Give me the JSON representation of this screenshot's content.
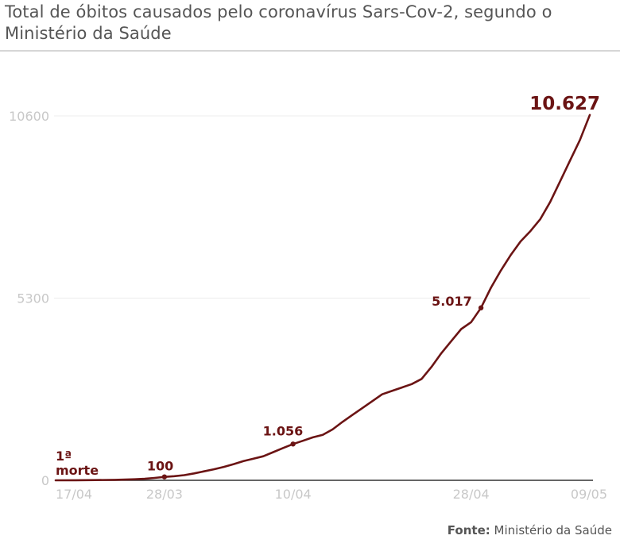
{
  "title": "Total de óbitos causados pelo coronavírus Sars-Cov-2, segundo o Ministério da Saúde",
  "source": {
    "label": "Fonte:",
    "text": "Ministério da Saúde"
  },
  "colors": {
    "line": "#6b1414",
    "grid": "#ececec",
    "axis_text": "#c8c8c8",
    "baseline": "#333333"
  },
  "chart_data": {
    "type": "line",
    "title": "Total de óbitos causados pelo coronavírus Sars-Cov-2, segundo o Ministério da Saúde",
    "xlabel": "",
    "ylabel": "",
    "x_range": [
      0,
      54
    ],
    "ylim": [
      0,
      10600
    ],
    "y_ticks": [
      0,
      5300,
      10600
    ],
    "x_ticks": [
      {
        "x": 0,
        "label": "17/04"
      },
      {
        "x": 11,
        "label": "28/03"
      },
      {
        "x": 24,
        "label": "10/04"
      },
      {
        "x": 42,
        "label": "28/04"
      },
      {
        "x": 53,
        "label": "09/05"
      }
    ],
    "series": [
      {
        "name": "Total de óbitos",
        "points": [
          [
            0,
            1
          ],
          [
            2,
            3
          ],
          [
            4,
            7
          ],
          [
            6,
            15
          ],
          [
            8,
            30
          ],
          [
            9,
            45
          ],
          [
            10,
            70
          ],
          [
            11,
            100
          ],
          [
            12,
            120
          ],
          [
            13,
            150
          ],
          [
            14,
            200
          ],
          [
            15,
            260
          ],
          [
            16,
            320
          ],
          [
            17,
            390
          ],
          [
            18,
            470
          ],
          [
            19,
            560
          ],
          [
            20,
            630
          ],
          [
            21,
            700
          ],
          [
            22,
            820
          ],
          [
            23,
            940
          ],
          [
            24,
            1056
          ],
          [
            25,
            1150
          ],
          [
            26,
            1250
          ],
          [
            27,
            1320
          ],
          [
            28,
            1480
          ],
          [
            29,
            1700
          ],
          [
            30,
            1900
          ],
          [
            31,
            2100
          ],
          [
            32,
            2300
          ],
          [
            33,
            2500
          ],
          [
            34,
            2600
          ],
          [
            35,
            2700
          ],
          [
            36,
            2800
          ],
          [
            37,
            2950
          ],
          [
            38,
            3300
          ],
          [
            39,
            3700
          ],
          [
            40,
            4050
          ],
          [
            41,
            4400
          ],
          [
            42,
            4600
          ],
          [
            43,
            5017
          ],
          [
            44,
            5600
          ],
          [
            45,
            6100
          ],
          [
            46,
            6550
          ],
          [
            47,
            6950
          ],
          [
            48,
            7250
          ],
          [
            49,
            7600
          ],
          [
            50,
            8100
          ],
          [
            51,
            8700
          ],
          [
            52,
            9300
          ],
          [
            53,
            9900
          ],
          [
            54,
            10627
          ]
        ]
      }
    ],
    "annotations": [
      {
        "x": 0,
        "y": 1,
        "text": "1ª",
        "marker": false
      },
      {
        "x": 0,
        "y": 1,
        "text": "morte",
        "marker": false
      },
      {
        "x": 11,
        "y": 100,
        "text": "100",
        "marker": true
      },
      {
        "x": 24,
        "y": 1056,
        "text": "1.056",
        "marker": true
      },
      {
        "x": 43,
        "y": 5017,
        "text": "5.017",
        "marker": true
      },
      {
        "x": 54,
        "y": 10627,
        "text": "10.627",
        "marker": false
      }
    ]
  }
}
